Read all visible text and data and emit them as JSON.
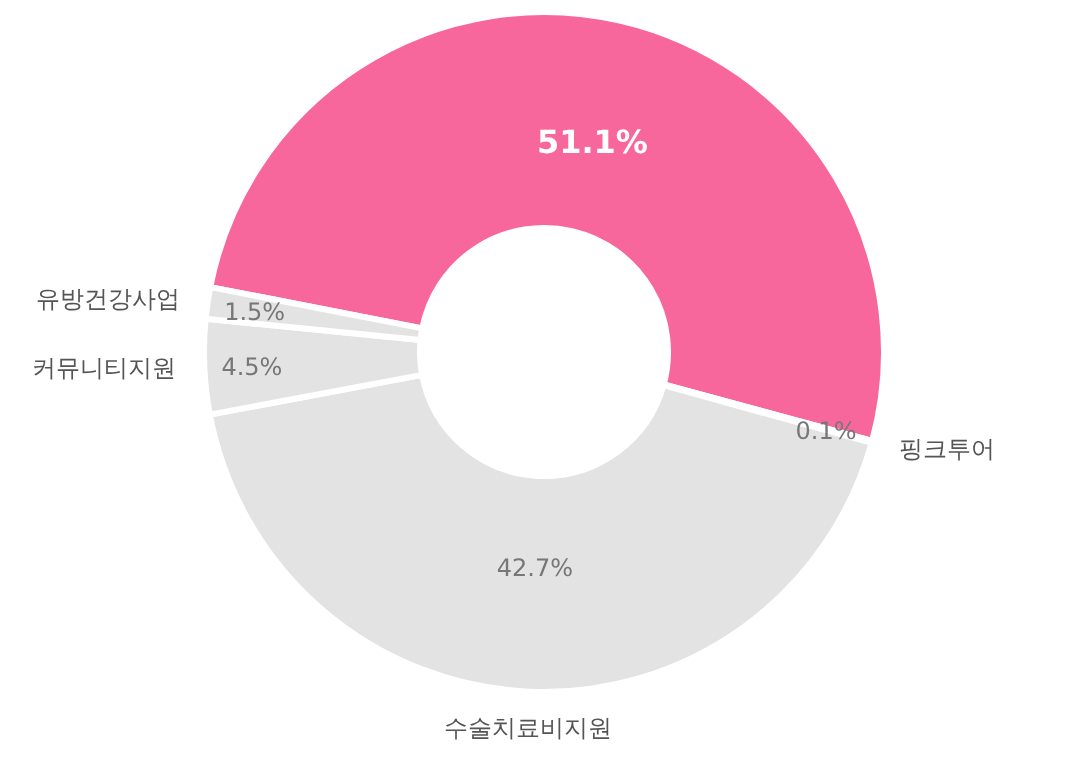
{
  "chart_data": {
    "type": "donut",
    "categories": [
      null,
      "핑크투어",
      "수술치료비지원",
      "커뮤니티지원",
      "유방건강사업"
    ],
    "values": [
      51.1,
      0.1,
      42.7,
      4.5,
      1.5
    ],
    "value_labels": [
      "51.1%",
      "0.1%",
      "42.7%",
      "4.5%",
      "1.5%"
    ],
    "colors": [
      "#f7679b",
      "#e3e3e3",
      "#e3e3e3",
      "#e3e3e3",
      "#e3e3e3"
    ]
  }
}
